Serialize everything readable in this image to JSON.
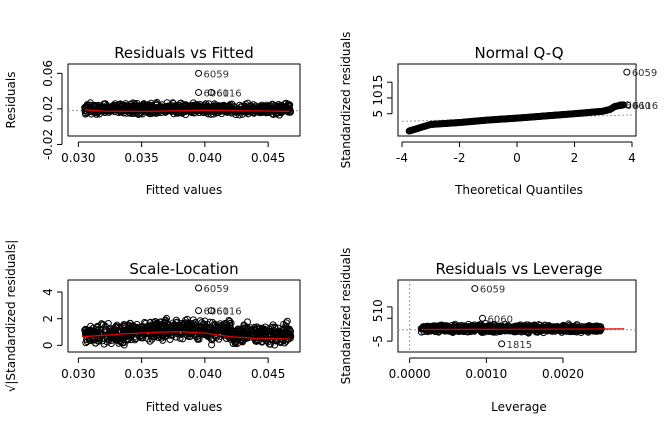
{
  "chart_data": [
    {
      "type": "scatter",
      "title": "Residuals vs Fitted",
      "xlabel": "Fitted values",
      "ylabel": "Residuals",
      "xlim": [
        0.0295,
        0.0472
      ],
      "ylim": [
        -0.006,
        0.066
      ],
      "xticks": [
        0.03,
        0.035,
        0.04,
        0.045
      ],
      "xtick_labels": [
        "0.030",
        "0.035",
        "0.040",
        "0.045"
      ],
      "yticks": [
        -0.02,
        0.02,
        0.06
      ],
      "ytick_labels": [
        "-0.02",
        "0.02",
        "0.06"
      ],
      "y_origin_at_tick": true,
      "labeled_points": [
        {
          "label": "6059",
          "x": 0.0395,
          "y": 0.06
        },
        {
          "label": "6060",
          "x": 0.0395,
          "y": 0.0385
        },
        {
          "label": "6116",
          "x": 0.0405,
          "y": 0.0385
        }
      ],
      "cloud": {
        "x_range": [
          0.0305,
          0.0468
        ],
        "y_center": 0.02,
        "y_spread": 0.0055,
        "n": 850
      },
      "smooth_line": [
        [
          0.0305,
          0.019
        ],
        [
          0.032,
          0.0175
        ],
        [
          0.035,
          0.0172
        ],
        [
          0.038,
          0.0178
        ],
        [
          0.04,
          0.0185
        ],
        [
          0.042,
          0.0182
        ],
        [
          0.044,
          0.0177
        ],
        [
          0.0467,
          0.0173
        ]
      ],
      "reference_line": {
        "type": "hline",
        "y": 0.018,
        "style": "dotted"
      }
    },
    {
      "type": "scatter",
      "title": "Normal Q-Q",
      "xlabel": "Theoretical Quantiles",
      "ylabel": "Standardized residuals",
      "xlim": [
        -4.0,
        4.0
      ],
      "ylim": [
        -0.8,
        19.5
      ],
      "xticks": [
        -4,
        -2,
        0,
        2,
        4
      ],
      "xtick_labels": [
        "-4",
        "-2",
        "0",
        "2",
        "4"
      ],
      "yticks": [
        5,
        10,
        15
      ],
      "ytick_labels": [
        "5",
        "10",
        "15"
      ],
      "labeled_points": [
        {
          "label": "6059",
          "x": 3.82,
          "y": 18.2
        },
        {
          "label": "6060",
          "x": 3.6,
          "y": 7.8
        },
        {
          "label": "6116",
          "x": 3.85,
          "y": 7.8
        }
      ],
      "qq_curve": [
        [
          -3.75,
          -0.5
        ],
        [
          -3.4,
          0.5
        ],
        [
          -3.0,
          1.6
        ],
        [
          -2.0,
          2.2
        ],
        [
          -1.0,
          3.0
        ],
        [
          0.0,
          3.6
        ],
        [
          1.0,
          4.3
        ],
        [
          2.0,
          5.0
        ],
        [
          3.0,
          5.8
        ],
        [
          3.25,
          6.4
        ],
        [
          3.4,
          7.3
        ],
        [
          3.7,
          7.8
        ]
      ],
      "reference_line": {
        "from": [
          -4.0,
          2.6
        ],
        "to": [
          4.0,
          4.6
        ],
        "style": "dotted"
      }
    },
    {
      "type": "scatter",
      "title": "Scale-Location",
      "xlabel": "Fitted values",
      "ylabel": "√|Standardized residuals|",
      "xlim": [
        0.0295,
        0.0472
      ],
      "ylim": [
        -0.2,
        4.6
      ],
      "xticks": [
        0.03,
        0.035,
        0.04,
        0.045
      ],
      "xtick_labels": [
        "0.030",
        "0.035",
        "0.040",
        "0.045"
      ],
      "yticks": [
        0,
        2,
        4
      ],
      "ytick_labels": [
        "0",
        "2",
        "4"
      ],
      "labeled_points": [
        {
          "label": "6059",
          "x": 0.0395,
          "y": 4.3
        },
        {
          "label": "6060",
          "x": 0.0395,
          "y": 2.6
        },
        {
          "label": "6116",
          "x": 0.0405,
          "y": 2.6
        }
      ],
      "cloud": {
        "x_range": [
          0.0305,
          0.0468
        ],
        "y_center": 0.85,
        "y_spread": 0.6,
        "n": 850
      },
      "smooth_line": [
        [
          0.0303,
          0.65
        ],
        [
          0.032,
          0.75
        ],
        [
          0.034,
          0.88
        ],
        [
          0.036,
          0.98
        ],
        [
          0.038,
          1.02
        ],
        [
          0.04,
          0.92
        ],
        [
          0.042,
          0.65
        ],
        [
          0.044,
          0.52
        ],
        [
          0.0467,
          0.48
        ]
      ]
    },
    {
      "type": "scatter",
      "title": "Residuals vs Leverage",
      "xlabel": "Leverage",
      "ylabel": "Standardized residuals",
      "xlim": [
        -0.0001,
        0.0029
      ],
      "ylim": [
        -8.0,
        20.0
      ],
      "xticks": [
        0.0,
        0.001,
        0.002
      ],
      "xtick_labels": [
        "0.0000",
        "0.0010",
        "0.0020"
      ],
      "yticks": [
        -5,
        5,
        10
      ],
      "ytick_labels": [
        "-5",
        "5",
        "10"
      ],
      "y_origin_at_tick": true,
      "labeled_points": [
        {
          "label": "6059",
          "x": 0.00085,
          "y": 18.0
        },
        {
          "label": "6060",
          "x": 0.00095,
          "y": 5.0
        },
        {
          "label": "1815",
          "x": 0.0012,
          "y": -6.2
        }
      ],
      "cloud": {
        "x_range": [
          0.00015,
          0.0025
        ],
        "y_center": 0.5,
        "y_spread": 1.5,
        "n": 850
      },
      "smooth_line": [
        [
          0.00015,
          0.1
        ],
        [
          0.001,
          0.2
        ],
        [
          0.002,
          0.25
        ],
        [
          0.0028,
          0.35
        ]
      ],
      "reference_lines": [
        {
          "type": "hline",
          "y": 0,
          "style": "dotted"
        },
        {
          "type": "vline",
          "x": 0,
          "style": "dotted"
        }
      ]
    }
  ]
}
